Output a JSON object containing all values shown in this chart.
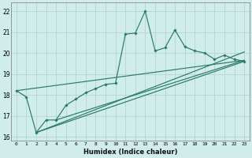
{
  "bg_color": "#d0eceb",
  "grid_color": "#b8d8d6",
  "line_color": "#2a7a6a",
  "xlabel": "Humidex (Indice chaleur)",
  "xlim": [
    -0.5,
    23.5
  ],
  "ylim": [
    15.8,
    22.4
  ],
  "xticks": [
    0,
    1,
    2,
    3,
    4,
    5,
    6,
    7,
    8,
    9,
    10,
    11,
    12,
    13,
    14,
    15,
    16,
    17,
    18,
    19,
    20,
    21,
    22,
    23
  ],
  "yticks": [
    16,
    17,
    18,
    19,
    20,
    21,
    22
  ],
  "main_x": [
    0,
    1,
    2,
    3,
    4,
    5,
    6,
    7,
    8,
    9,
    10,
    11,
    12,
    13,
    14,
    15,
    16,
    17,
    18,
    19,
    20,
    21,
    22,
    23
  ],
  "main_y": [
    18.2,
    17.9,
    16.2,
    16.8,
    16.8,
    17.5,
    17.8,
    18.1,
    18.3,
    18.5,
    18.55,
    20.9,
    20.95,
    22.0,
    20.1,
    20.25,
    21.1,
    20.3,
    20.1,
    20.0,
    19.7,
    19.9,
    19.7,
    19.6
  ],
  "trend_lines": [
    {
      "x": [
        2,
        23
      ],
      "y": [
        16.2,
        19.6
      ]
    },
    {
      "x": [
        0,
        23
      ],
      "y": [
        18.2,
        19.65
      ]
    },
    {
      "x": [
        2,
        23
      ],
      "y": [
        16.2,
        20.05
      ]
    },
    {
      "x": [
        4,
        23
      ],
      "y": [
        16.8,
        19.65
      ]
    }
  ]
}
